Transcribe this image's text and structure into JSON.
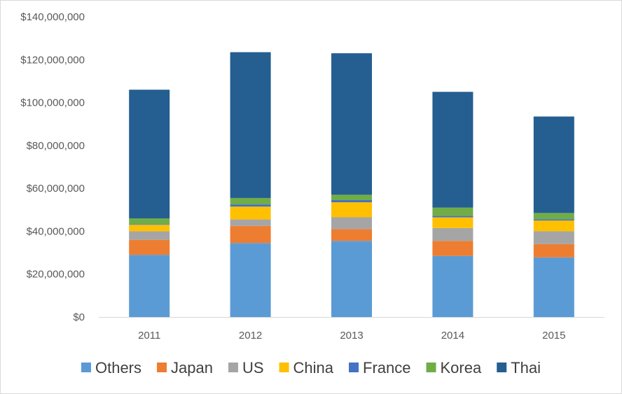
{
  "chart_data": {
    "type": "bar",
    "stacked": true,
    "categories": [
      "2011",
      "2012",
      "2013",
      "2014",
      "2015"
    ],
    "series": [
      {
        "name": "Others",
        "color": "#5b9bd5",
        "values": [
          29000000,
          34500000,
          35500000,
          28500000,
          27800000
        ]
      },
      {
        "name": "Japan",
        "color": "#ed7d31",
        "values": [
          7000000,
          8000000,
          5500000,
          7000000,
          6200000
        ]
      },
      {
        "name": "US",
        "color": "#a5a5a5",
        "values": [
          4000000,
          3000000,
          5500000,
          6000000,
          6000000
        ]
      },
      {
        "name": "China",
        "color": "#ffc000",
        "values": [
          3000000,
          6000000,
          7000000,
          5000000,
          5000000
        ]
      },
      {
        "name": "France",
        "color": "#4472c4",
        "values": [
          300000,
          1000000,
          1000000,
          700000,
          600000
        ]
      },
      {
        "name": "Korea",
        "color": "#70ad47",
        "values": [
          2700000,
          3000000,
          2500000,
          3800000,
          2900000
        ]
      },
      {
        "name": "Thai",
        "color": "#255e91",
        "values": [
          60000000,
          68000000,
          66000000,
          54000000,
          45000000
        ]
      }
    ],
    "y_ticks": [
      "$0",
      "$20,000,000",
      "$40,000,000",
      "$60,000,000",
      "$80,000,000",
      "$100,000,000",
      "$120,000,000",
      "$140,000,000"
    ],
    "ylim": [
      0,
      140000000
    ],
    "grid": false,
    "legend_position": "bottom"
  }
}
